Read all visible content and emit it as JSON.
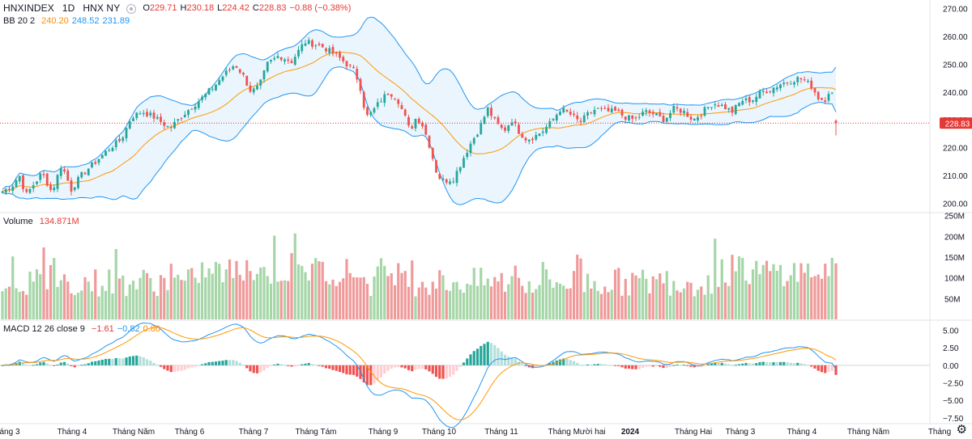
{
  "header": {
    "symbol": "HNXINDEX",
    "interval": "1D",
    "exchange": "HNX NY",
    "ohlc": {
      "o_label": "O",
      "o_value": "229.71",
      "h_label": "H",
      "h_value": "230.18",
      "l_label": "L",
      "l_value": "224.42",
      "c_label": "C",
      "c_value": "228.83",
      "change": "−0.88 (−0.38%)"
    }
  },
  "bb_legend": {
    "name": "BB 20 2",
    "middle": "240.20",
    "upper": "248.52",
    "lower": "231.89"
  },
  "volume_legend": {
    "name": "Volume",
    "value": "134.871M"
  },
  "macd_legend": {
    "name": "MACD 12 26 close 9",
    "hist": "−1.61",
    "macd": "−0.82",
    "signal": "0.80"
  },
  "colors": {
    "up": "#26a69a",
    "down": "#ef5350",
    "vol_up": "#a5d6a7",
    "vol_down": "#ef9a9a",
    "bb_band": "#2196f3",
    "bb_fill": "#e3f2fd",
    "basis": "#ff9800",
    "macd": "#2196f3",
    "signal": "#ff9800",
    "price_tag": "#e53935"
  },
  "price_tag": "228.83",
  "chart_data": {
    "type": "candlestick",
    "title": "HNXINDEX 1D HNX NY",
    "price_axis": {
      "ticks": [
        "270.00",
        "260.00",
        "250.00",
        "240.00",
        "230.00",
        "220.00",
        "210.00",
        "200.00"
      ],
      "range": [
        197,
        273
      ]
    },
    "volume_axis": {
      "ticks": [
        "250M",
        "200M",
        "150M",
        "100M",
        "50M"
      ],
      "range": [
        0,
        255
      ]
    },
    "macd_axis": {
      "ticks": [
        "5.00",
        "2.50",
        "0.00",
        "−2.50",
        "−5.00",
        "−7.50"
      ],
      "range": [
        -8.2,
        6.2
      ]
    },
    "time_axis": {
      "labels": [
        "áng 3",
        "Tháng 4",
        "Tháng Năm",
        "Tháng 6",
        "Tháng 7",
        "Tháng Tám",
        "Tháng 9",
        "Tháng 10",
        "Tháng 11",
        "Tháng Mười hai",
        "2024",
        "Tháng Hai",
        "Tháng 3",
        "Tháng 4",
        "Tháng Năm",
        "Tháng"
      ]
    },
    "close_anchors": [
      [
        0,
        204
      ],
      [
        14,
        206
      ],
      [
        24,
        210
      ],
      [
        32,
        203
      ],
      [
        42,
        207
      ],
      [
        52,
        211
      ],
      [
        64,
        204
      ],
      [
        76,
        214
      ],
      [
        88,
        205
      ],
      [
        100,
        210
      ],
      [
        118,
        215
      ],
      [
        136,
        220
      ],
      [
        150,
        223
      ],
      [
        162,
        231
      ],
      [
        176,
        233
      ],
      [
        190,
        231
      ],
      [
        210,
        227
      ],
      [
        230,
        233
      ],
      [
        250,
        238
      ],
      [
        264,
        242
      ],
      [
        276,
        246
      ],
      [
        290,
        250
      ],
      [
        300,
        246
      ],
      [
        310,
        240
      ],
      [
        320,
        242
      ],
      [
        330,
        250
      ],
      [
        344,
        253
      ],
      [
        360,
        251
      ],
      [
        376,
        258
      ],
      [
        390,
        257
      ],
      [
        400,
        256
      ],
      [
        410,
        254
      ],
      [
        420,
        252
      ],
      [
        436,
        248
      ],
      [
        444,
        243
      ],
      [
        452,
        231
      ],
      [
        460,
        233
      ],
      [
        470,
        237
      ],
      [
        480,
        240
      ],
      [
        490,
        238
      ],
      [
        500,
        231
      ],
      [
        506,
        226
      ],
      [
        514,
        231
      ],
      [
        522,
        228
      ],
      [
        530,
        221
      ],
      [
        540,
        210
      ],
      [
        548,
        208
      ],
      [
        560,
        209
      ],
      [
        570,
        215
      ],
      [
        580,
        221
      ],
      [
        592,
        227
      ],
      [
        602,
        234
      ],
      [
        612,
        229
      ],
      [
        622,
        226
      ],
      [
        632,
        230
      ],
      [
        640,
        226
      ],
      [
        650,
        223
      ],
      [
        660,
        224
      ],
      [
        670,
        226
      ],
      [
        680,
        229
      ],
      [
        692,
        234
      ],
      [
        704,
        232
      ],
      [
        716,
        229
      ],
      [
        726,
        232
      ],
      [
        736,
        234
      ],
      [
        748,
        233
      ],
      [
        760,
        233
      ],
      [
        772,
        231
      ],
      [
        784,
        230
      ],
      [
        796,
        233
      ],
      [
        808,
        232
      ],
      [
        820,
        230
      ],
      [
        832,
        234
      ],
      [
        844,
        233
      ],
      [
        856,
        230
      ],
      [
        868,
        233
      ],
      [
        880,
        236
      ],
      [
        892,
        235
      ],
      [
        904,
        233
      ],
      [
        916,
        237
      ],
      [
        928,
        237
      ],
      [
        940,
        240
      ],
      [
        952,
        241
      ],
      [
        964,
        243
      ],
      [
        976,
        244
      ],
      [
        986,
        245
      ],
      [
        994,
        244
      ],
      [
        1002,
        242
      ],
      [
        1010,
        238
      ],
      [
        1018,
        237
      ],
      [
        1026,
        242
      ],
      [
        1032,
        229
      ]
    ],
    "last": {
      "open": 229.71,
      "high": 230.18,
      "low": 224.42,
      "close": 228.83,
      "volume_m": 134.871
    }
  }
}
